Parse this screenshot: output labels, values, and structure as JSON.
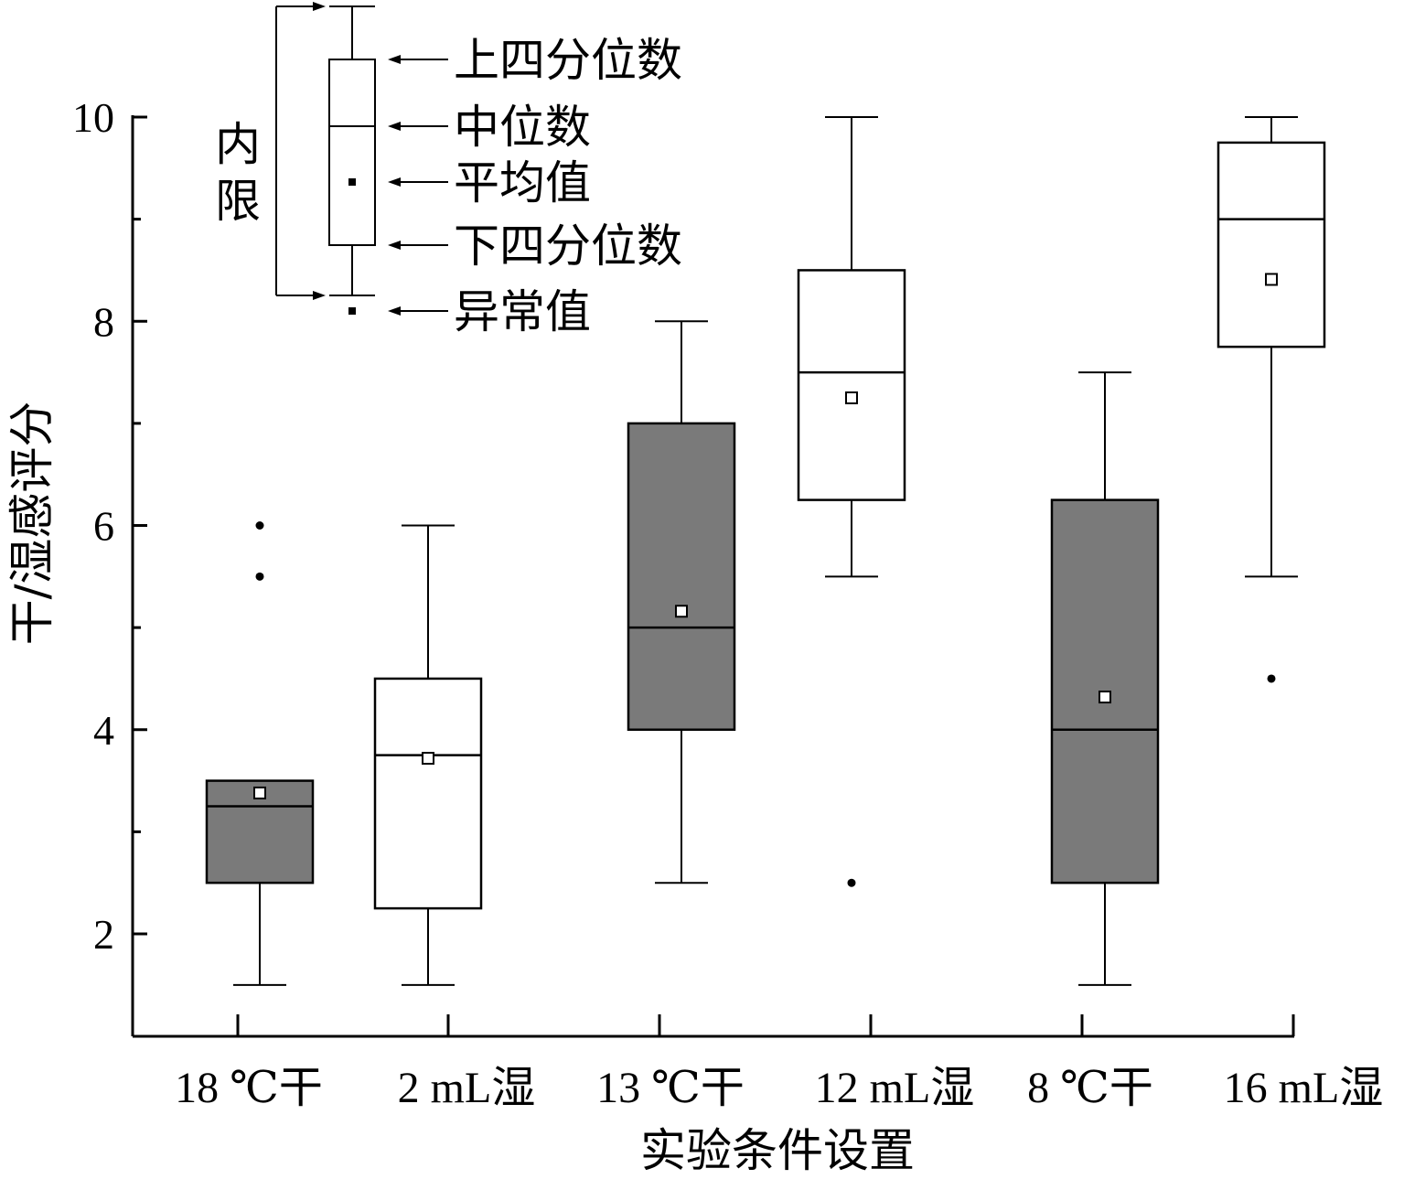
{
  "chart_data": {
    "type": "box",
    "xlabel": "实验条件设置",
    "ylabel": "干/湿感评分",
    "ylim": [
      1.0,
      10.0
    ],
    "yticks": [
      2,
      4,
      6,
      8,
      10
    ],
    "yticks_minor": [
      3,
      5,
      7,
      9
    ],
    "categories": [
      "18 ℃干",
      "2 mL湿",
      "13 ℃干",
      "12 mL湿",
      "8 ℃干",
      "16 mL湿"
    ],
    "boxes": [
      {
        "category": "18 ℃干",
        "fill": "#7a7a7a",
        "whisker_low": 1.5,
        "q1": 2.5,
        "median": 3.25,
        "q3": 3.5,
        "whisker_high": 3.5,
        "mean": 3.38,
        "outliers": [
          5.5,
          6.0
        ]
      },
      {
        "category": "2 mL湿",
        "fill": "#ffffff",
        "whisker_low": 1.5,
        "q1": 2.25,
        "median": 3.75,
        "q3": 4.5,
        "whisker_high": 6.0,
        "mean": 3.72,
        "outliers": []
      },
      {
        "category": "13 ℃干",
        "fill": "#7a7a7a",
        "whisker_low": 2.5,
        "q1": 4.0,
        "median": 5.0,
        "q3": 7.0,
        "whisker_high": 8.0,
        "mean": 5.16,
        "outliers": []
      },
      {
        "category": "12 mL湿",
        "fill": "#ffffff",
        "whisker_low": 5.5,
        "q1": 6.25,
        "median": 7.5,
        "q3": 8.5,
        "whisker_high": 10.0,
        "mean": 7.25,
        "outliers": [
          2.5
        ]
      },
      {
        "category": "8 ℃干",
        "fill": "#7a7a7a",
        "whisker_low": 1.5,
        "q1": 2.5,
        "median": 4.0,
        "q3": 6.25,
        "whisker_high": 7.5,
        "mean": 4.32,
        "outliers": []
      },
      {
        "category": "16 mL湿",
        "fill": "#ffffff",
        "whisker_low": 5.5,
        "q1": 7.75,
        "median": 9.0,
        "q3": 9.75,
        "whisker_high": 10.0,
        "mean": 8.41,
        "outliers": [
          4.5
        ]
      }
    ],
    "legend": {
      "bracket_label": "内限",
      "items": [
        "上四分位数",
        "中位数",
        "平均值",
        "下四分位数",
        "异常值"
      ],
      "placement": "top-left"
    }
  }
}
